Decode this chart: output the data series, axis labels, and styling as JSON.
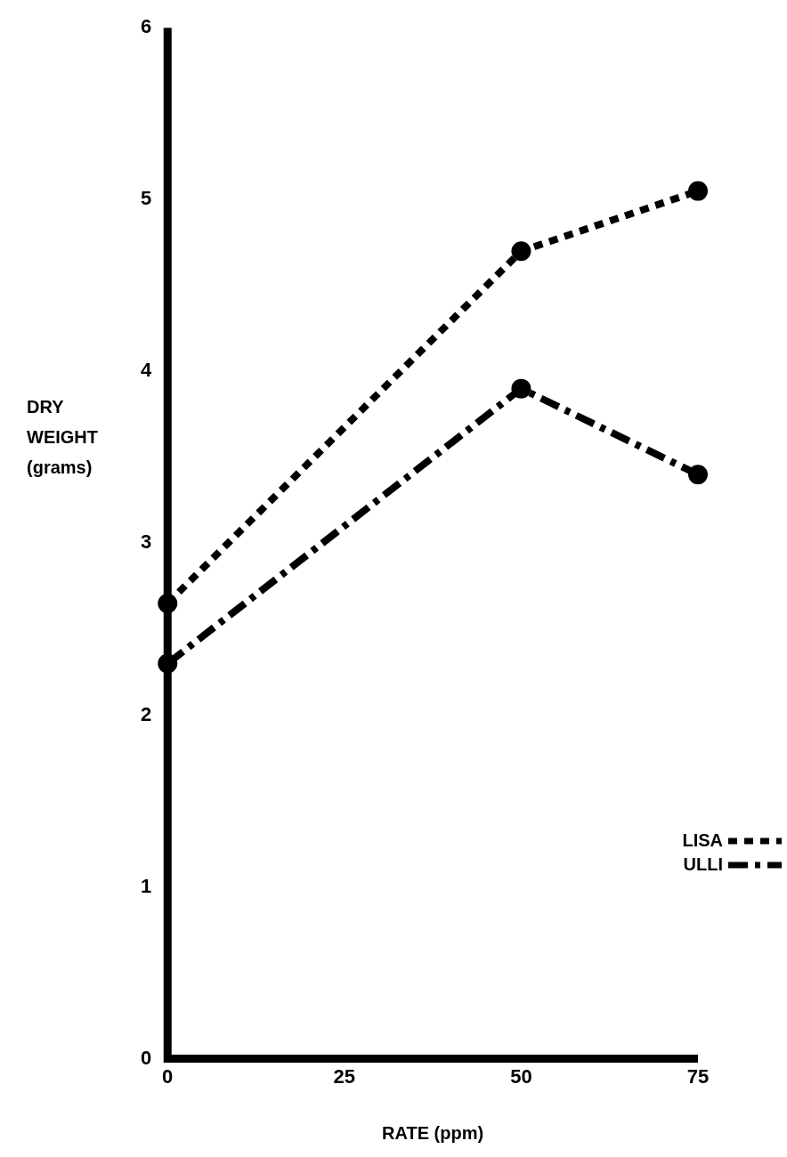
{
  "chart_data": {
    "type": "line",
    "xlabel": "RATE (ppm)",
    "ylabel": "DRY WEIGHT (grams)",
    "x": [
      0,
      50,
      75
    ],
    "series": [
      {
        "name": "LISA",
        "color": "#000000",
        "values": [
          2.65,
          4.7,
          5.05
        ],
        "line_style": "dashed"
      },
      {
        "name": "ULLI",
        "color": "#000000",
        "values": [
          2.3,
          3.9,
          3.4
        ],
        "line_style": "dashdot"
      }
    ],
    "xlim": [
      0,
      75
    ],
    "xticks": [
      0,
      25,
      50,
      75
    ],
    "ylim": [
      0,
      6
    ],
    "yticks": [
      0,
      1,
      2,
      3,
      4,
      5,
      6
    ],
    "grid": false,
    "legend": "bottom right",
    "marker": "circle"
  }
}
